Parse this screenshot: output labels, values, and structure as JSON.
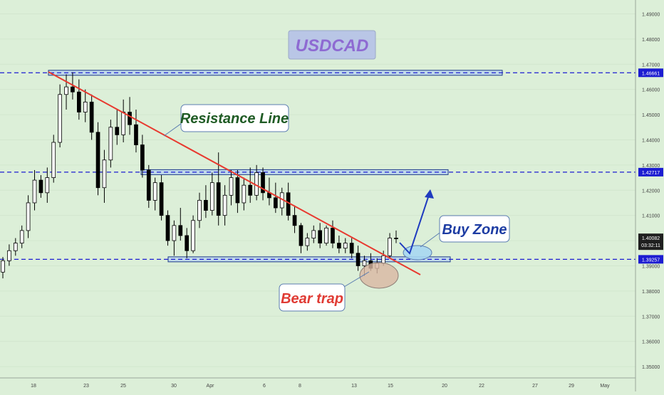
{
  "chart_data": {
    "type": "candlestick",
    "title": "USDCAD",
    "ylim": [
      1.3455,
      1.4955
    ],
    "y_ticks": [
      "1.35000",
      "1.36000",
      "1.37000",
      "1.38000",
      "1.39000",
      "1.40000",
      "1.41000",
      "1.42000",
      "1.43000",
      "1.44000",
      "1.45000",
      "1.46000",
      "1.47000",
      "1.48000",
      "1.49000"
    ],
    "x_ticks": [
      "18",
      "23",
      "25",
      "30",
      "Apr",
      "6",
      "8",
      "13",
      "15",
      "20",
      "22",
      "27",
      "29",
      "May"
    ],
    "series_color_up": "#ffffff",
    "series_color_down": "#000000",
    "candles": [
      [
        1.3875,
        1.3935,
        1.385,
        1.392
      ],
      [
        1.392,
        1.3985,
        1.39,
        1.396
      ],
      [
        1.396,
        1.401,
        1.394,
        1.399
      ],
      [
        1.399,
        1.406,
        1.397,
        1.404
      ],
      [
        1.404,
        1.418,
        1.401,
        1.415
      ],
      [
        1.415,
        1.428,
        1.412,
        1.424
      ],
      [
        1.424,
        1.426,
        1.417,
        1.419
      ],
      [
        1.419,
        1.429,
        1.415,
        1.425
      ],
      [
        1.425,
        1.442,
        1.423,
        1.439
      ],
      [
        1.439,
        1.462,
        1.437,
        1.458
      ],
      [
        1.458,
        1.466,
        1.452,
        1.461
      ],
      [
        1.461,
        1.4668,
        1.456,
        1.459
      ],
      [
        1.459,
        1.464,
        1.448,
        1.451
      ],
      [
        1.451,
        1.46,
        1.447,
        1.455
      ],
      [
        1.455,
        1.458,
        1.44,
        1.443
      ],
      [
        1.443,
        1.447,
        1.418,
        1.421
      ],
      [
        1.421,
        1.436,
        1.415,
        1.432
      ],
      [
        1.432,
        1.448,
        1.429,
        1.445
      ],
      [
        1.445,
        1.452,
        1.438,
        1.442
      ],
      [
        1.442,
        1.456,
        1.439,
        1.451
      ],
      [
        1.451,
        1.457,
        1.442,
        1.446
      ],
      [
        1.446,
        1.452,
        1.435,
        1.438
      ],
      [
        1.438,
        1.442,
        1.425,
        1.428
      ],
      [
        1.428,
        1.43,
        1.413,
        1.416
      ],
      [
        1.416,
        1.425,
        1.412,
        1.423
      ],
      [
        1.423,
        1.426,
        1.408,
        1.41
      ],
      [
        1.41,
        1.412,
        1.398,
        1.4
      ],
      [
        1.4,
        1.408,
        1.394,
        1.406
      ],
      [
        1.406,
        1.413,
        1.4,
        1.402
      ],
      [
        1.402,
        1.405,
        1.393,
        1.396
      ],
      [
        1.396,
        1.41,
        1.395,
        1.408
      ],
      [
        1.408,
        1.419,
        1.405,
        1.416
      ],
      [
        1.416,
        1.422,
        1.409,
        1.412
      ],
      [
        1.412,
        1.427,
        1.41,
        1.423
      ],
      [
        1.423,
        1.435,
        1.406,
        1.41
      ],
      [
        1.41,
        1.422,
        1.406,
        1.418
      ],
      [
        1.418,
        1.428,
        1.414,
        1.425
      ],
      [
        1.425,
        1.428,
        1.411,
        1.415
      ],
      [
        1.415,
        1.425,
        1.412,
        1.422
      ],
      [
        1.422,
        1.429,
        1.415,
        1.418
      ],
      [
        1.418,
        1.43,
        1.416,
        1.427
      ],
      [
        1.427,
        1.429,
        1.416,
        1.419
      ],
      [
        1.419,
        1.425,
        1.414,
        1.417
      ],
      [
        1.417,
        1.423,
        1.411,
        1.413
      ],
      [
        1.413,
        1.421,
        1.41,
        1.419
      ],
      [
        1.419,
        1.423,
        1.408,
        1.41
      ],
      [
        1.41,
        1.414,
        1.403,
        1.406
      ],
      [
        1.406,
        1.407,
        1.395,
        1.398
      ],
      [
        1.398,
        1.403,
        1.396,
        1.401
      ],
      [
        1.401,
        1.406,
        1.399,
        1.404
      ],
      [
        1.404,
        1.407,
        1.397,
        1.399
      ],
      [
        1.399,
        1.406,
        1.398,
        1.405
      ],
      [
        1.405,
        1.408,
        1.397,
        1.399
      ],
      [
        1.399,
        1.402,
        1.395,
        1.397
      ],
      [
        1.397,
        1.401,
        1.395,
        1.399
      ],
      [
        1.399,
        1.401,
        1.393,
        1.395
      ],
      [
        1.395,
        1.398,
        1.388,
        1.39
      ],
      [
        1.39,
        1.394,
        1.386,
        1.392
      ],
      [
        1.392,
        1.395,
        1.388,
        1.389
      ],
      [
        1.389,
        1.393,
        1.387,
        1.391
      ],
      [
        1.391,
        1.396,
        1.39,
        1.394
      ],
      [
        1.394,
        1.403,
        1.393,
        1.401
      ],
      [
        1.401,
        1.404,
        1.399,
        1.4008
      ]
    ],
    "levels": [
      {
        "price": 1.46661,
        "label": "1.46661"
      },
      {
        "price": 1.42717,
        "label": "1.42717"
      },
      {
        "price": 1.39257,
        "label": "1.39257"
      }
    ],
    "current_price": "1.40082",
    "countdown": "03:32:11",
    "annotations": {
      "resistance": "Resistance Line",
      "buy_zone": "Buy Zone",
      "bear_trap": "Bear trap"
    },
    "colors": {
      "background": "#dcefd8",
      "resistance": "#e8392f",
      "level": "#1c1cd1",
      "zone_fill": "#b7d3f0",
      "arrow": "#1f3bbf",
      "title_fill": "#b9c6e6",
      "title_text": "#8e6ad2"
    }
  }
}
